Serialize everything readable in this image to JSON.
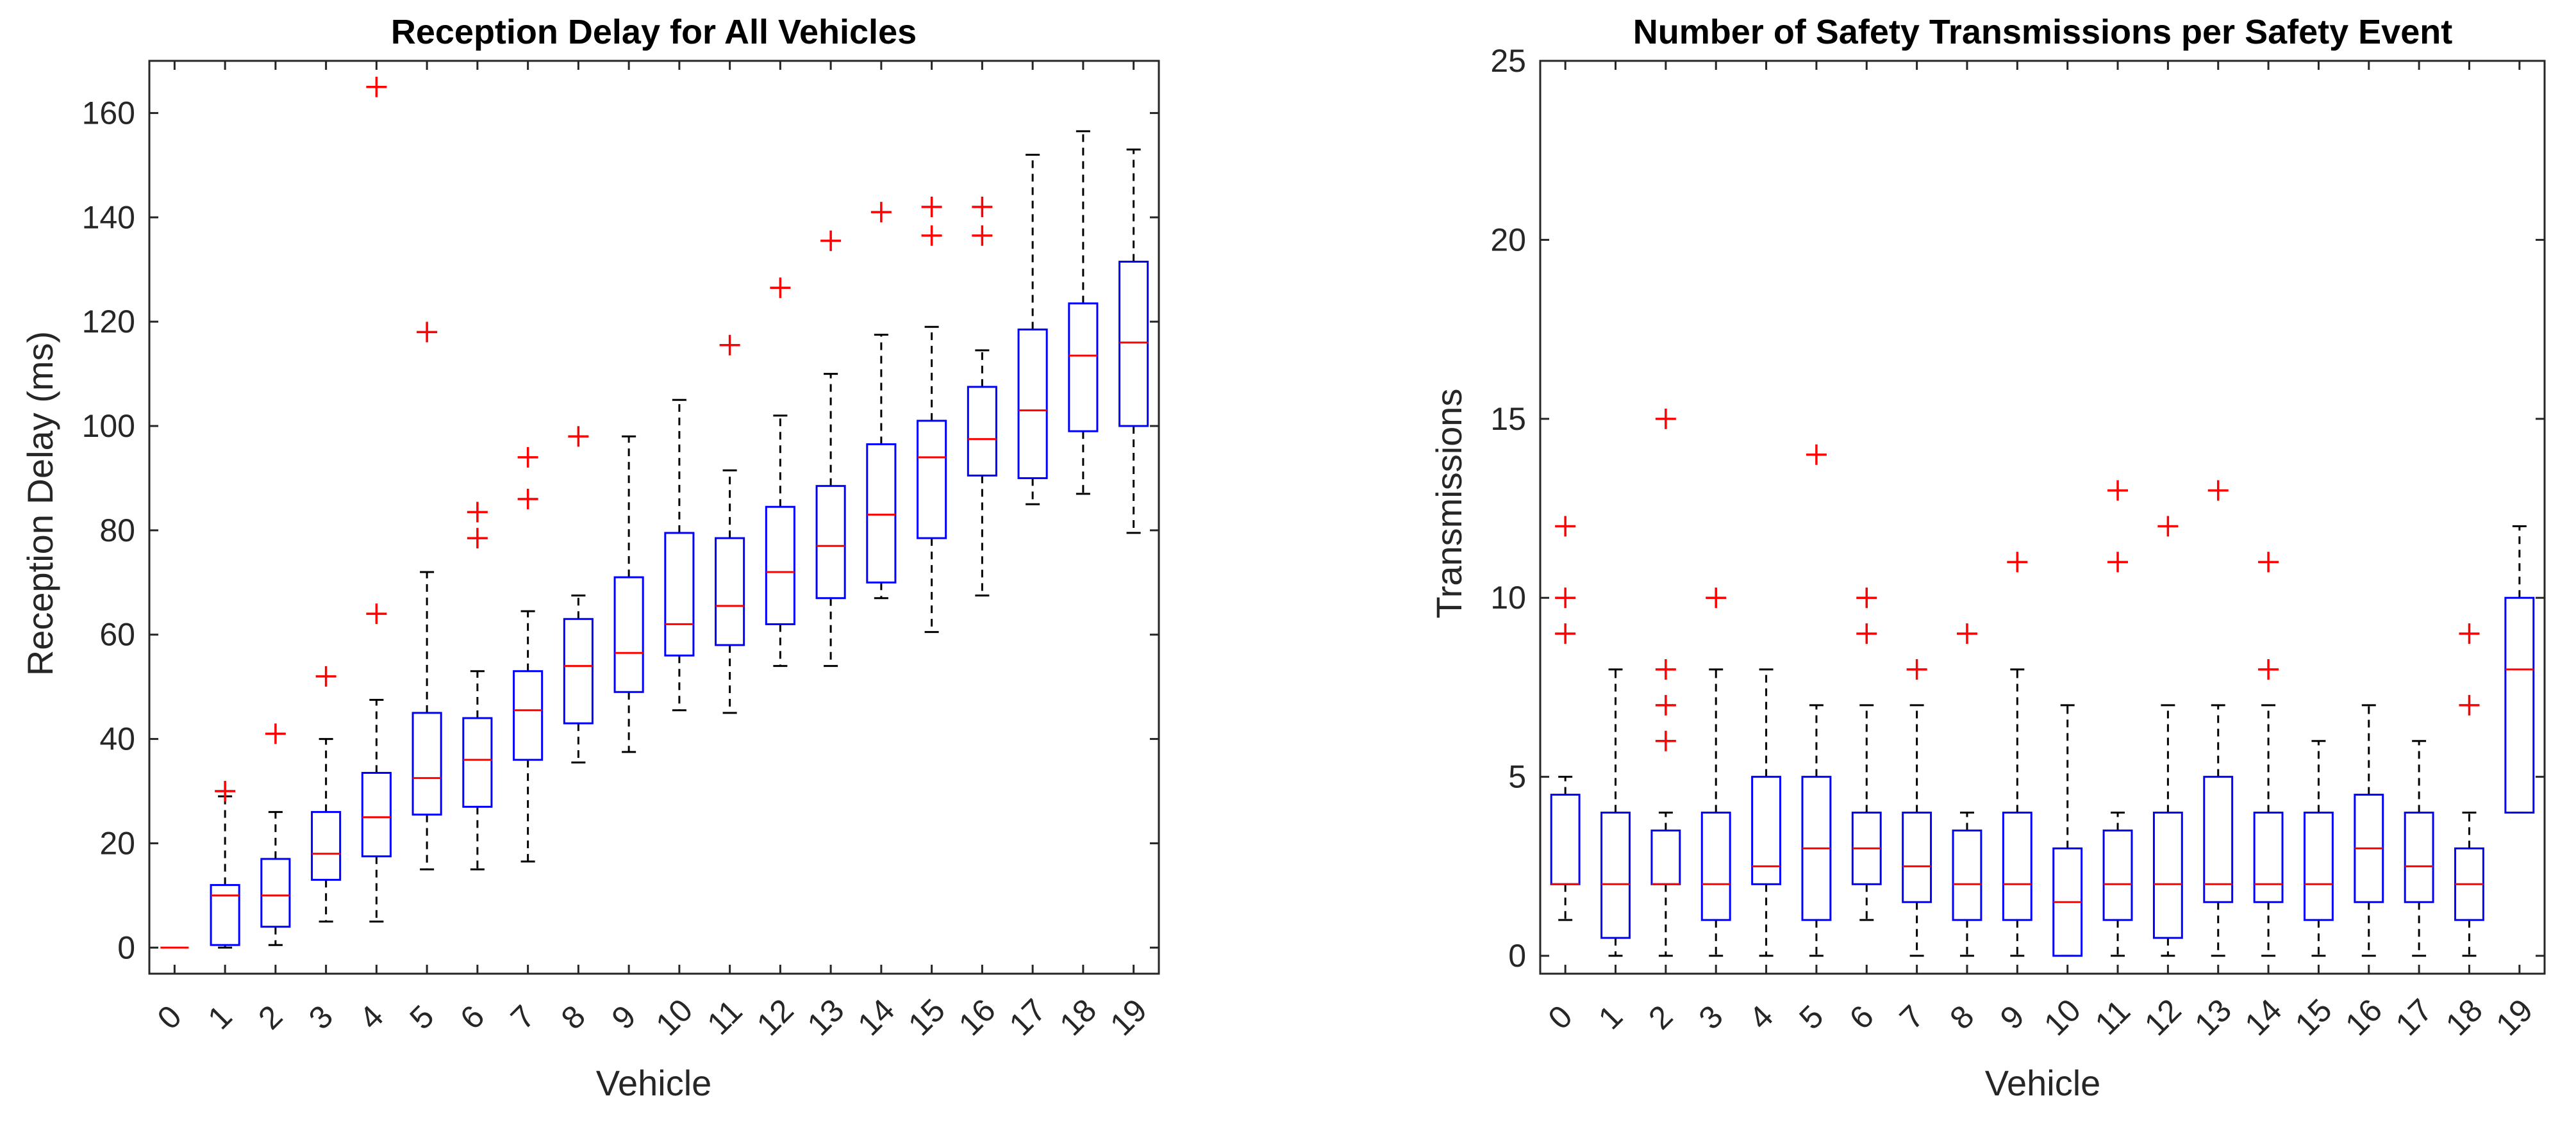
{
  "colors": {
    "box": "#0000ff",
    "median": "#ff0000",
    "outlier": "#ff0000",
    "whisker": "#000000",
    "axis": "#262626"
  },
  "chart_data": [
    {
      "type": "box",
      "title": "Reception Delay for All Vehicles",
      "xlabel": "Vehicle",
      "ylabel": "Reception Delay (ms)",
      "ylim": [
        -5,
        170
      ],
      "yticks": [
        0,
        20,
        40,
        60,
        80,
        100,
        120,
        140,
        160
      ],
      "categories": [
        "0",
        "1",
        "2",
        "3",
        "4",
        "5",
        "6",
        "7",
        "8",
        "9",
        "10",
        "11",
        "12",
        "13",
        "14",
        "15",
        "16",
        "17",
        "18",
        "19"
      ],
      "boxes": [
        {
          "q1": 0,
          "median": 0,
          "q3": 0,
          "low": 0,
          "high": 0,
          "outliers": []
        },
        {
          "q1": 0.5,
          "median": 10,
          "q3": 12,
          "low": 0,
          "high": 29,
          "outliers": [
            30
          ]
        },
        {
          "q1": 4,
          "median": 10,
          "q3": 17,
          "low": 0.5,
          "high": 26,
          "outliers": [
            41
          ]
        },
        {
          "q1": 13,
          "median": 18,
          "q3": 26,
          "low": 5,
          "high": 40,
          "outliers": [
            52
          ]
        },
        {
          "q1": 17.5,
          "median": 25,
          "q3": 33.5,
          "low": 5,
          "high": 47.5,
          "outliers": [
            64,
            165
          ]
        },
        {
          "q1": 25.5,
          "median": 32.5,
          "q3": 45,
          "low": 15,
          "high": 72,
          "outliers": [
            118
          ]
        },
        {
          "q1": 27,
          "median": 36,
          "q3": 44,
          "low": 15,
          "high": 53,
          "outliers": [
            78.5,
            83.5
          ]
        },
        {
          "q1": 36,
          "median": 45.5,
          "q3": 53,
          "low": 16.5,
          "high": 64.5,
          "outliers": [
            86,
            94
          ]
        },
        {
          "q1": 43,
          "median": 54,
          "q3": 63,
          "low": 35.5,
          "high": 67.5,
          "outliers": [
            98
          ]
        },
        {
          "q1": 49,
          "median": 56.5,
          "q3": 71,
          "low": 37.5,
          "high": 98,
          "outliers": []
        },
        {
          "q1": 56,
          "median": 62,
          "q3": 79.5,
          "low": 45.5,
          "high": 105,
          "outliers": []
        },
        {
          "q1": 58,
          "median": 65.5,
          "q3": 78.5,
          "low": 45,
          "high": 91.5,
          "outliers": [
            115.5
          ]
        },
        {
          "q1": 62,
          "median": 72,
          "q3": 84.5,
          "low": 54,
          "high": 102,
          "outliers": [
            126.5
          ]
        },
        {
          "q1": 67,
          "median": 77,
          "q3": 88.5,
          "low": 54,
          "high": 110,
          "outliers": [
            135.5
          ]
        },
        {
          "q1": 70,
          "median": 83,
          "q3": 96.5,
          "low": 67,
          "high": 117.5,
          "outliers": [
            141
          ]
        },
        {
          "q1": 78.5,
          "median": 94,
          "q3": 101,
          "low": 60.5,
          "high": 119,
          "outliers": [
            136.5,
            142
          ]
        },
        {
          "q1": 90.5,
          "median": 97.5,
          "q3": 107.5,
          "low": 67.5,
          "high": 114.5,
          "outliers": [
            136.5,
            142
          ]
        },
        {
          "q1": 90,
          "median": 103,
          "q3": 118.5,
          "low": 85,
          "high": 152,
          "outliers": []
        },
        {
          "q1": 99,
          "median": 113.5,
          "q3": 123.5,
          "low": 87,
          "high": 156.5,
          "outliers": []
        },
        {
          "q1": 100,
          "median": 116,
          "q3": 131.5,
          "low": 79.5,
          "high": 153,
          "outliers": []
        }
      ]
    },
    {
      "type": "box",
      "title": "Number of Safety Transmissions per Safety Event",
      "xlabel": "Vehicle",
      "ylabel": "Transmissions",
      "ylim": [
        -0.5,
        25
      ],
      "yticks": [
        0,
        5,
        10,
        15,
        20,
        25
      ],
      "categories": [
        "0",
        "1",
        "2",
        "3",
        "4",
        "5",
        "6",
        "7",
        "8",
        "9",
        "10",
        "11",
        "12",
        "13",
        "14",
        "15",
        "16",
        "17",
        "18",
        "19"
      ],
      "boxes": [
        {
          "q1": 2,
          "median": 2,
          "q3": 4.5,
          "low": 1,
          "high": 5,
          "outliers": [
            9,
            10,
            12
          ]
        },
        {
          "q1": 0.5,
          "median": 2,
          "q3": 4,
          "low": 0,
          "high": 8,
          "outliers": []
        },
        {
          "q1": 2,
          "median": 2,
          "q3": 3.5,
          "low": 0,
          "high": 4,
          "outliers": [
            6,
            7,
            8,
            15
          ]
        },
        {
          "q1": 1,
          "median": 2,
          "q3": 4,
          "low": 0,
          "high": 8,
          "outliers": [
            10
          ]
        },
        {
          "q1": 2,
          "median": 2.5,
          "q3": 5,
          "low": 0,
          "high": 8,
          "outliers": []
        },
        {
          "q1": 1,
          "median": 3,
          "q3": 5,
          "low": 0,
          "high": 7,
          "outliers": [
            14
          ]
        },
        {
          "q1": 2,
          "median": 3,
          "q3": 4,
          "low": 1,
          "high": 7,
          "outliers": [
            9,
            10
          ]
        },
        {
          "q1": 1.5,
          "median": 2.5,
          "q3": 4,
          "low": 0,
          "high": 7,
          "outliers": [
            8
          ]
        },
        {
          "q1": 1,
          "median": 2,
          "q3": 3.5,
          "low": 0,
          "high": 4,
          "outliers": [
            9
          ]
        },
        {
          "q1": 1,
          "median": 2,
          "q3": 4,
          "low": 0,
          "high": 8,
          "outliers": [
            11
          ]
        },
        {
          "q1": 0,
          "median": 1.5,
          "q3": 3,
          "low": 0,
          "high": 7,
          "outliers": []
        },
        {
          "q1": 1,
          "median": 2,
          "q3": 3.5,
          "low": 0,
          "high": 4,
          "outliers": [
            11,
            13
          ]
        },
        {
          "q1": 0.5,
          "median": 2,
          "q3": 4,
          "low": 0,
          "high": 7,
          "outliers": [
            12
          ]
        },
        {
          "q1": 1.5,
          "median": 2,
          "q3": 5,
          "low": 0,
          "high": 7,
          "outliers": [
            13
          ]
        },
        {
          "q1": 1.5,
          "median": 2,
          "q3": 4,
          "low": 0,
          "high": 7,
          "outliers": [
            8,
            11
          ]
        },
        {
          "q1": 1,
          "median": 2,
          "q3": 4,
          "low": 0,
          "high": 6,
          "outliers": []
        },
        {
          "q1": 1.5,
          "median": 3,
          "q3": 4.5,
          "low": 0,
          "high": 7,
          "outliers": []
        },
        {
          "q1": 1.5,
          "median": 2.5,
          "q3": 4,
          "low": 0,
          "high": 6,
          "outliers": []
        },
        {
          "q1": 1,
          "median": 2,
          "q3": 3,
          "low": 0,
          "high": 4,
          "outliers": [
            7,
            9
          ]
        },
        {
          "q1": 4,
          "median": 8,
          "q3": 10,
          "low": 4,
          "high": 12,
          "outliers": []
        }
      ]
    }
  ]
}
